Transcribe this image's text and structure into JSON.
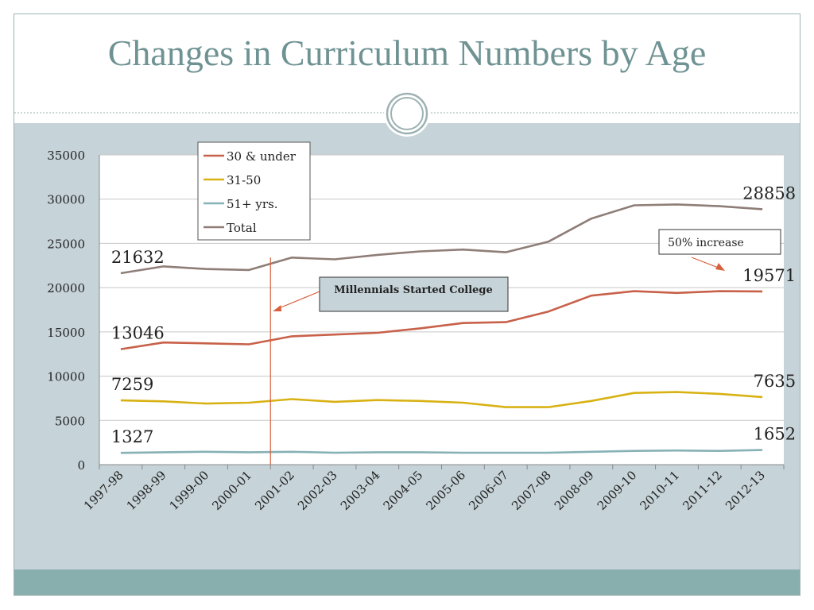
{
  "slide": {
    "title": "Changes in Curriculum Numbers by Age"
  },
  "colors": {
    "title": "#6f9293",
    "band": "#c6d3d8",
    "footer": "#89aeae",
    "divider": "#9eb2b3",
    "grid": "#c8c8c8"
  },
  "chart_data": {
    "type": "line",
    "categories": [
      "1997-98",
      "1998-99",
      "1999-00",
      "2000-01",
      "2001-02",
      "2002-03",
      "2003-04",
      "2004-05",
      "2005-06",
      "2006-07",
      "2007-08",
      "2008-09",
      "2009-10",
      "2010-11",
      "2011-12",
      "2012-13"
    ],
    "ylim": [
      0,
      35000
    ],
    "yticks": [
      0,
      5000,
      10000,
      15000,
      20000,
      25000,
      30000,
      35000
    ],
    "grid": true,
    "legend_position": "top-left",
    "series": [
      {
        "name": "30 & under",
        "color": "#c8614a",
        "values": [
          13046,
          13800,
          13700,
          13600,
          14500,
          14700,
          14900,
          15400,
          16000,
          16100,
          17300,
          19100,
          19600,
          19400,
          19600,
          19571
        ],
        "start_label": "13046",
        "end_label": "19571"
      },
      {
        "name": "31-50",
        "color": "#d8b214",
        "values": [
          7259,
          7150,
          6900,
          7000,
          7400,
          7100,
          7300,
          7200,
          7000,
          6500,
          6500,
          7200,
          8100,
          8200,
          8000,
          7635
        ],
        "start_label": "7259",
        "end_label": "7635"
      },
      {
        "name": "51+ yrs.",
        "color": "#86b1b6",
        "values": [
          1327,
          1400,
          1450,
          1400,
          1450,
          1350,
          1400,
          1400,
          1350,
          1350,
          1350,
          1450,
          1550,
          1600,
          1550,
          1652
        ],
        "start_label": "1327",
        "end_label": "1652"
      },
      {
        "name": "Total",
        "color": "#8f7e78",
        "values": [
          21632,
          22400,
          22100,
          22000,
          23400,
          23200,
          23700,
          24100,
          24300,
          24000,
          25200,
          27800,
          29300,
          29400,
          29200,
          28858
        ],
        "start_label": "21632",
        "end_label": "28858"
      }
    ],
    "annotations": [
      {
        "text": "Millennials Started College",
        "at_category": "2000-01",
        "marker": "vertical line"
      },
      {
        "text": "50% increase",
        "points_to": "19571"
      }
    ]
  }
}
